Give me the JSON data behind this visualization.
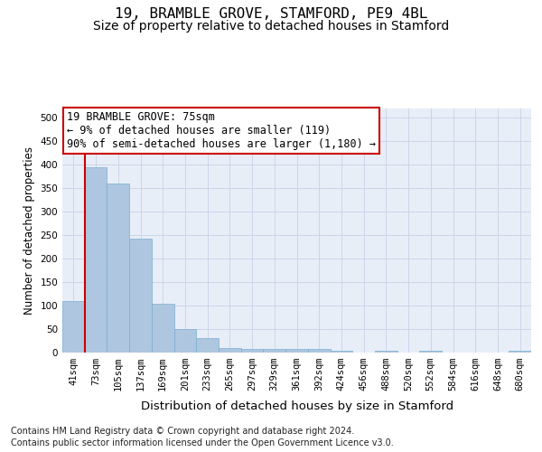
{
  "title": "19, BRAMBLE GROVE, STAMFORD, PE9 4BL",
  "subtitle": "Size of property relative to detached houses in Stamford",
  "xlabel": "Distribution of detached houses by size in Stamford",
  "ylabel": "Number of detached properties",
  "footer_line1": "Contains HM Land Registry data © Crown copyright and database right 2024.",
  "footer_line2": "Contains public sector information licensed under the Open Government Licence v3.0.",
  "bar_labels": [
    "41sqm",
    "73sqm",
    "105sqm",
    "137sqm",
    "169sqm",
    "201sqm",
    "233sqm",
    "265sqm",
    "297sqm",
    "329sqm",
    "361sqm",
    "392sqm",
    "424sqm",
    "456sqm",
    "488sqm",
    "520sqm",
    "552sqm",
    "584sqm",
    "616sqm",
    "648sqm",
    "680sqm"
  ],
  "bar_values": [
    110,
    395,
    360,
    242,
    104,
    50,
    30,
    10,
    7,
    7,
    8,
    7,
    4,
    0,
    4,
    0,
    4,
    0,
    0,
    0,
    4
  ],
  "bar_color": "#aec6df",
  "bar_edgecolor": "#7aaed0",
  "annotation_text": "19 BRAMBLE GROVE: 75sqm\n← 9% of detached houses are smaller (119)\n90% of semi-detached houses are larger (1,180) →",
  "vline_color": "#cc0000",
  "annotation_box_edgecolor": "#cc0000",
  "annotation_fontsize": 8.5,
  "ylim": [
    0,
    520
  ],
  "yticks": [
    0,
    50,
    100,
    150,
    200,
    250,
    300,
    350,
    400,
    450,
    500
  ],
  "grid_color": "#ccd5e8",
  "title_fontsize": 11.5,
  "subtitle_fontsize": 10,
  "xlabel_fontsize": 9.5,
  "ylabel_fontsize": 8.5,
  "tick_fontsize": 7.5,
  "footer_fontsize": 7,
  "bg_color": "#e8eef8",
  "fig_bg_color": "#ffffff",
  "bar_width": 1.0
}
